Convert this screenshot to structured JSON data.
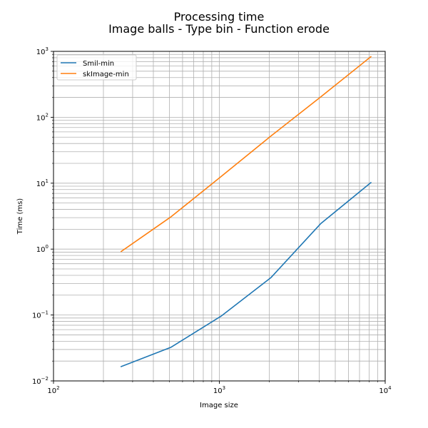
{
  "chart_data": {
    "type": "line",
    "title": "Processing time",
    "subtitle": "Image balls - Type bin - Function erode",
    "xlabel": "Image size",
    "ylabel": "Time (ms)",
    "xscale": "log",
    "yscale": "log",
    "xlim": [
      100,
      10000
    ],
    "ylim": [
      0.01,
      1000
    ],
    "x_ticks": [
      {
        "base": "10",
        "exp": "2"
      },
      {
        "base": "10",
        "exp": "3"
      },
      {
        "base": "10",
        "exp": "4"
      }
    ],
    "y_ticks": [
      {
        "base": "10",
        "exp": "−2"
      },
      {
        "base": "10",
        "exp": "−1"
      },
      {
        "base": "10",
        "exp": "0"
      },
      {
        "base": "10",
        "exp": "1"
      },
      {
        "base": "10",
        "exp": "2"
      },
      {
        "base": "10",
        "exp": "3"
      }
    ],
    "grid": "both (major and minor)",
    "legend_position": "top-left",
    "series": [
      {
        "name": "Smil-min",
        "color": "#1f77b4",
        "x": [
          256,
          512,
          1024,
          2048,
          4096,
          8192
        ],
        "y": [
          0.0165,
          0.0325,
          0.096,
          0.37,
          2.45,
          10.2
        ]
      },
      {
        "name": "skImage-min",
        "color": "#ff7f0e",
        "x": [
          256,
          512,
          1024,
          2048,
          4096,
          8192
        ],
        "y": [
          0.92,
          3.1,
          12.6,
          52,
          205,
          830
        ]
      }
    ]
  }
}
